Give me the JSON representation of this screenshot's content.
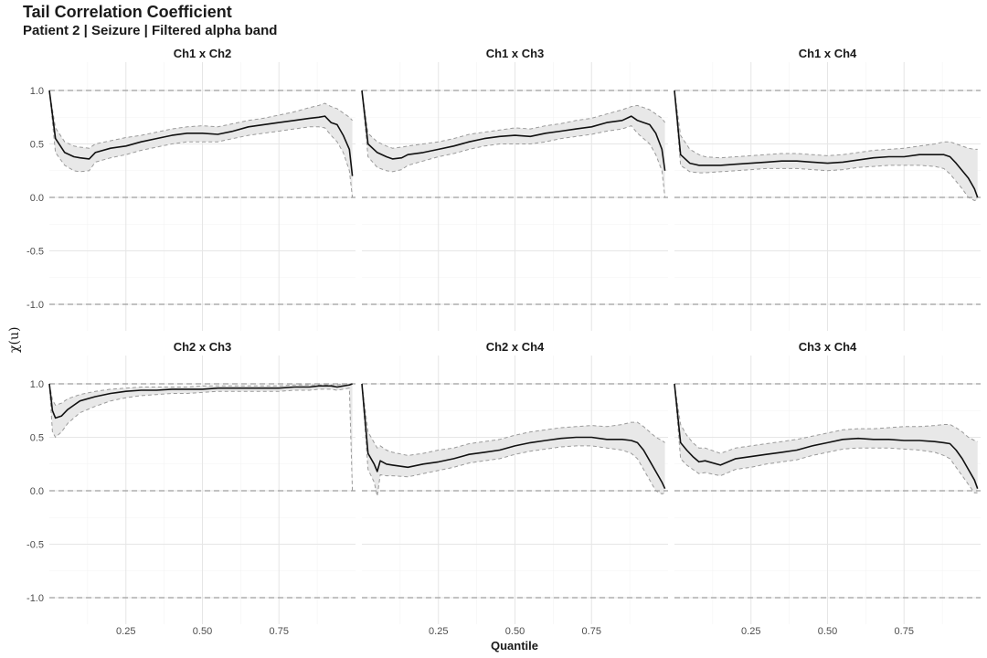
{
  "chart_data": {
    "type": "line",
    "title": "Tail Correlation Coefficient",
    "subtitle": "Patient 2 | Seizure | Filtered alpha band",
    "xlabel": "Quantile",
    "ylabel": "χ(u)",
    "xlim": [
      0,
      1
    ],
    "ylim": [
      -1.0,
      1.0
    ],
    "x_ticks": [
      0.25,
      0.5,
      0.75
    ],
    "x_tick_labels": [
      "0.25",
      "0.50",
      "0.75"
    ],
    "y_ticks": [
      1.0,
      0.5,
      0.0,
      -0.5,
      -1.0
    ],
    "y_tick_labels": [
      "1.0",
      "0.5",
      "0.0",
      "-0.5",
      "-1.0"
    ],
    "reference_lines": [
      1.0,
      0.0,
      -1.0
    ],
    "grid": true,
    "panels": [
      {
        "label": "Ch1 x Ch2",
        "x": [
          0.0,
          0.02,
          0.05,
          0.08,
          0.1,
          0.13,
          0.15,
          0.2,
          0.25,
          0.3,
          0.35,
          0.4,
          0.45,
          0.5,
          0.55,
          0.6,
          0.65,
          0.7,
          0.75,
          0.8,
          0.85,
          0.88,
          0.9,
          0.92,
          0.94,
          0.96,
          0.98,
          0.99
        ],
        "y": [
          1.0,
          0.55,
          0.42,
          0.38,
          0.37,
          0.36,
          0.42,
          0.46,
          0.48,
          0.52,
          0.55,
          0.58,
          0.6,
          0.6,
          0.59,
          0.62,
          0.66,
          0.68,
          0.7,
          0.72,
          0.74,
          0.75,
          0.76,
          0.7,
          0.68,
          0.58,
          0.45,
          0.2
        ],
        "lower": [
          1.0,
          0.42,
          0.3,
          0.25,
          0.24,
          0.25,
          0.33,
          0.37,
          0.4,
          0.44,
          0.47,
          0.5,
          0.52,
          0.52,
          0.52,
          0.55,
          0.58,
          0.6,
          0.62,
          0.64,
          0.66,
          0.66,
          0.65,
          0.58,
          0.52,
          0.42,
          0.25,
          0.0
        ],
        "upper": [
          1.0,
          0.65,
          0.52,
          0.48,
          0.47,
          0.46,
          0.5,
          0.53,
          0.56,
          0.58,
          0.61,
          0.64,
          0.66,
          0.67,
          0.66,
          0.69,
          0.72,
          0.74,
          0.77,
          0.8,
          0.84,
          0.86,
          0.88,
          0.85,
          0.83,
          0.79,
          0.75,
          0.72
        ]
      },
      {
        "label": "Ch1 x Ch3",
        "x": [
          0.0,
          0.02,
          0.05,
          0.08,
          0.1,
          0.13,
          0.15,
          0.2,
          0.25,
          0.3,
          0.35,
          0.4,
          0.45,
          0.5,
          0.55,
          0.6,
          0.65,
          0.7,
          0.75,
          0.8,
          0.85,
          0.88,
          0.9,
          0.92,
          0.94,
          0.96,
          0.98,
          0.99
        ],
        "y": [
          1.0,
          0.5,
          0.42,
          0.38,
          0.36,
          0.37,
          0.4,
          0.42,
          0.45,
          0.48,
          0.52,
          0.55,
          0.57,
          0.58,
          0.57,
          0.6,
          0.62,
          0.64,
          0.66,
          0.7,
          0.72,
          0.76,
          0.72,
          0.7,
          0.68,
          0.6,
          0.45,
          0.25
        ],
        "lower": [
          1.0,
          0.38,
          0.28,
          0.25,
          0.24,
          0.26,
          0.3,
          0.34,
          0.38,
          0.41,
          0.45,
          0.48,
          0.5,
          0.5,
          0.5,
          0.52,
          0.55,
          0.57,
          0.59,
          0.62,
          0.64,
          0.67,
          0.6,
          0.55,
          0.5,
          0.4,
          0.25,
          0.0
        ],
        "upper": [
          1.0,
          0.6,
          0.52,
          0.48,
          0.46,
          0.47,
          0.48,
          0.5,
          0.52,
          0.55,
          0.59,
          0.61,
          0.63,
          0.65,
          0.64,
          0.67,
          0.69,
          0.72,
          0.74,
          0.78,
          0.82,
          0.85,
          0.86,
          0.84,
          0.82,
          0.78,
          0.74,
          0.7
        ]
      },
      {
        "label": "Ch1 x Ch4",
        "x": [
          0.0,
          0.02,
          0.05,
          0.08,
          0.1,
          0.15,
          0.2,
          0.25,
          0.3,
          0.35,
          0.4,
          0.45,
          0.5,
          0.55,
          0.6,
          0.65,
          0.7,
          0.75,
          0.8,
          0.85,
          0.88,
          0.9,
          0.92,
          0.94,
          0.96,
          0.98,
          0.99
        ],
        "y": [
          1.0,
          0.4,
          0.32,
          0.3,
          0.3,
          0.3,
          0.31,
          0.32,
          0.33,
          0.34,
          0.34,
          0.33,
          0.32,
          0.33,
          0.35,
          0.37,
          0.38,
          0.38,
          0.4,
          0.4,
          0.4,
          0.38,
          0.32,
          0.25,
          0.18,
          0.08,
          0.0
        ],
        "lower": [
          1.0,
          0.3,
          0.24,
          0.23,
          0.23,
          0.24,
          0.25,
          0.26,
          0.27,
          0.27,
          0.27,
          0.26,
          0.25,
          0.26,
          0.28,
          0.29,
          0.3,
          0.3,
          0.3,
          0.29,
          0.27,
          0.22,
          0.15,
          0.08,
          0.0,
          -0.03,
          -0.02
        ],
        "upper": [
          1.0,
          0.58,
          0.45,
          0.4,
          0.38,
          0.37,
          0.38,
          0.39,
          0.4,
          0.41,
          0.41,
          0.4,
          0.39,
          0.4,
          0.42,
          0.44,
          0.45,
          0.46,
          0.48,
          0.5,
          0.52,
          0.52,
          0.5,
          0.48,
          0.46,
          0.45,
          0.45
        ]
      },
      {
        "label": "Ch2 x Ch3",
        "x": [
          0.0,
          0.01,
          0.02,
          0.04,
          0.06,
          0.08,
          0.1,
          0.15,
          0.2,
          0.25,
          0.3,
          0.35,
          0.4,
          0.45,
          0.5,
          0.55,
          0.6,
          0.65,
          0.7,
          0.75,
          0.8,
          0.85,
          0.88,
          0.9,
          0.92,
          0.94,
          0.96,
          0.98,
          0.99
        ],
        "y": [
          1.0,
          0.75,
          0.68,
          0.7,
          0.76,
          0.8,
          0.84,
          0.88,
          0.91,
          0.93,
          0.94,
          0.94,
          0.95,
          0.95,
          0.95,
          0.96,
          0.96,
          0.96,
          0.96,
          0.96,
          0.97,
          0.97,
          0.98,
          0.98,
          0.98,
          0.97,
          0.98,
          0.99,
          1.0
        ],
        "lower": [
          1.0,
          0.55,
          0.5,
          0.55,
          0.63,
          0.68,
          0.73,
          0.79,
          0.84,
          0.87,
          0.89,
          0.9,
          0.91,
          0.91,
          0.92,
          0.93,
          0.93,
          0.93,
          0.93,
          0.93,
          0.94,
          0.94,
          0.95,
          0.95,
          0.95,
          0.94,
          0.95,
          0.96,
          0.0
        ],
        "upper": [
          1.0,
          0.85,
          0.8,
          0.82,
          0.86,
          0.88,
          0.9,
          0.93,
          0.95,
          0.96,
          0.97,
          0.97,
          0.97,
          0.97,
          0.98,
          0.98,
          0.98,
          0.98,
          0.98,
          0.98,
          0.99,
          0.99,
          0.99,
          0.99,
          0.99,
          0.99,
          1.0,
          1.0,
          1.0
        ]
      },
      {
        "label": "Ch2 x Ch4",
        "x": [
          0.0,
          0.02,
          0.04,
          0.05,
          0.06,
          0.08,
          0.1,
          0.15,
          0.2,
          0.25,
          0.3,
          0.35,
          0.4,
          0.45,
          0.5,
          0.55,
          0.6,
          0.65,
          0.7,
          0.75,
          0.8,
          0.85,
          0.88,
          0.9,
          0.92,
          0.94,
          0.96,
          0.98,
          0.99
        ],
        "y": [
          1.0,
          0.35,
          0.25,
          0.18,
          0.28,
          0.25,
          0.24,
          0.22,
          0.25,
          0.27,
          0.3,
          0.34,
          0.36,
          0.38,
          0.42,
          0.45,
          0.47,
          0.49,
          0.5,
          0.5,
          0.48,
          0.48,
          0.47,
          0.45,
          0.38,
          0.28,
          0.18,
          0.08,
          0.02
        ],
        "lower": [
          1.0,
          0.2,
          0.08,
          -0.05,
          0.15,
          0.14,
          0.14,
          0.13,
          0.16,
          0.19,
          0.22,
          0.26,
          0.28,
          0.3,
          0.34,
          0.37,
          0.39,
          0.41,
          0.42,
          0.42,
          0.4,
          0.38,
          0.35,
          0.3,
          0.2,
          0.1,
          0.0,
          -0.03,
          -0.02
        ],
        "upper": [
          1.0,
          0.55,
          0.45,
          0.4,
          0.42,
          0.38,
          0.36,
          0.33,
          0.35,
          0.38,
          0.4,
          0.44,
          0.46,
          0.48,
          0.52,
          0.55,
          0.57,
          0.59,
          0.6,
          0.61,
          0.6,
          0.62,
          0.64,
          0.64,
          0.6,
          0.55,
          0.5,
          0.47,
          0.45
        ]
      },
      {
        "label": "Ch3 x Ch4",
        "x": [
          0.0,
          0.02,
          0.04,
          0.06,
          0.08,
          0.1,
          0.15,
          0.2,
          0.25,
          0.3,
          0.35,
          0.4,
          0.45,
          0.5,
          0.55,
          0.6,
          0.65,
          0.7,
          0.75,
          0.8,
          0.85,
          0.88,
          0.9,
          0.92,
          0.94,
          0.96,
          0.98,
          0.99
        ],
        "y": [
          1.0,
          0.45,
          0.38,
          0.32,
          0.27,
          0.28,
          0.24,
          0.3,
          0.32,
          0.34,
          0.36,
          0.38,
          0.42,
          0.45,
          0.48,
          0.49,
          0.48,
          0.48,
          0.47,
          0.47,
          0.46,
          0.45,
          0.44,
          0.38,
          0.3,
          0.2,
          0.1,
          0.02
        ],
        "lower": [
          1.0,
          0.3,
          0.24,
          0.2,
          0.16,
          0.17,
          0.14,
          0.2,
          0.22,
          0.25,
          0.27,
          0.29,
          0.33,
          0.36,
          0.39,
          0.4,
          0.4,
          0.4,
          0.39,
          0.38,
          0.36,
          0.33,
          0.3,
          0.22,
          0.14,
          0.06,
          -0.02,
          -0.02
        ],
        "upper": [
          1.0,
          0.62,
          0.52,
          0.45,
          0.4,
          0.4,
          0.35,
          0.4,
          0.42,
          0.44,
          0.46,
          0.48,
          0.51,
          0.54,
          0.57,
          0.58,
          0.58,
          0.59,
          0.6,
          0.6,
          0.61,
          0.62,
          0.62,
          0.59,
          0.55,
          0.5,
          0.47,
          0.46
        ]
      }
    ]
  }
}
